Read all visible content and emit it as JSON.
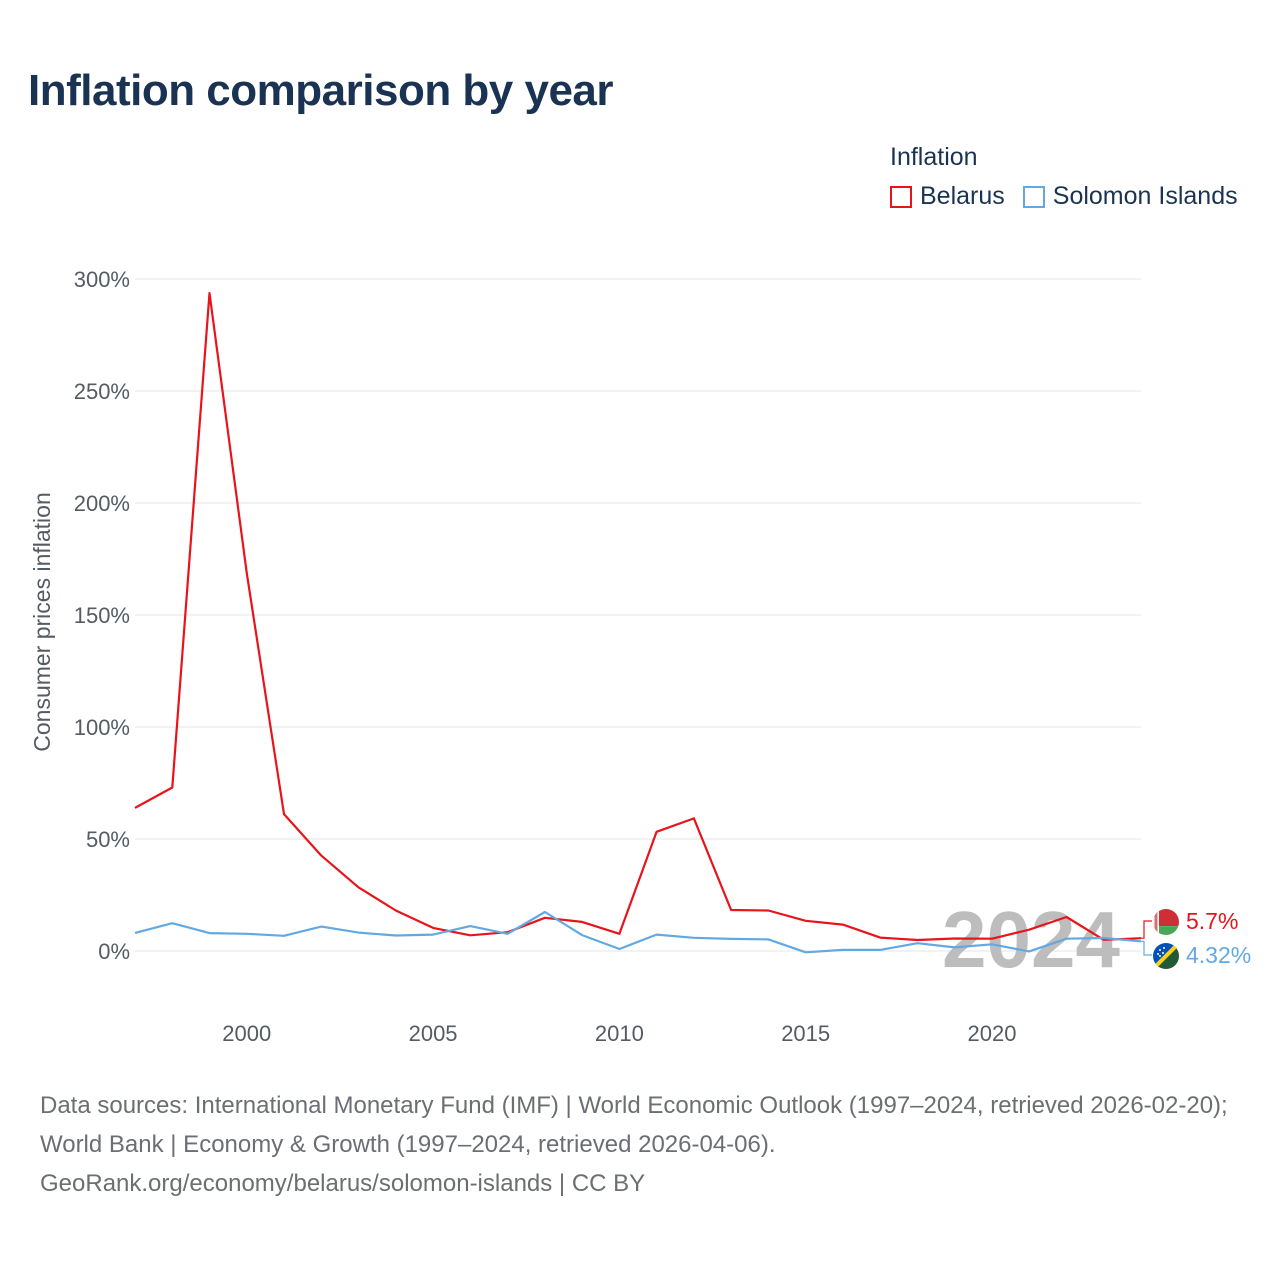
{
  "title": "Inflation comparison by year",
  "legend": {
    "title": "Inflation",
    "items": [
      {
        "label": "Belarus",
        "color": "#e8141b"
      },
      {
        "label": "Solomon Islands",
        "color": "#62a9e3"
      }
    ]
  },
  "watermark_year": "2024",
  "source": {
    "line1": "Data sources: International Monetary Fund (IMF) | World Economic Outlook (1997–2024, retrieved 2026-02-20); World Bank | Economy & Growth (1997–2024, retrieved 2026-04-06).",
    "line2": "GeoRank.org/economy/belarus/solomon-islands | CC BY"
  },
  "chart_data": {
    "type": "line",
    "title": "Inflation comparison by year",
    "xlabel": "",
    "ylabel": "Consumer prices inflation",
    "xlim": [
      1997,
      2024
    ],
    "ylim": [
      0,
      300
    ],
    "y_ticks": [
      0,
      50,
      100,
      150,
      200,
      250,
      300
    ],
    "y_tick_labels": [
      "0%",
      "50%",
      "100%",
      "150%",
      "200%",
      "250%",
      "300%"
    ],
    "x_ticks": [
      2000,
      2005,
      2010,
      2015,
      2020
    ],
    "x_tick_labels": [
      "2000",
      "2005",
      "2010",
      "2015",
      "2020"
    ],
    "grid": true,
    "legend_position": "top-right",
    "x": [
      1997,
      1998,
      1999,
      2000,
      2001,
      2002,
      2003,
      2004,
      2005,
      2006,
      2007,
      2008,
      2009,
      2010,
      2011,
      2012,
      2013,
      2014,
      2015,
      2016,
      2017,
      2018,
      2019,
      2020,
      2021,
      2022,
      2023,
      2024
    ],
    "series": [
      {
        "name": "Belarus",
        "color": "#e8141b",
        "values": [
          63.9,
          73.0,
          293.7,
          168.6,
          61.1,
          42.6,
          28.4,
          18.1,
          10.3,
          7.0,
          8.4,
          14.8,
          13.0,
          7.7,
          53.2,
          59.2,
          18.3,
          18.1,
          13.5,
          11.8,
          6.0,
          4.9,
          5.6,
          5.5,
          9.5,
          15.2,
          5.0,
          5.7
        ],
        "end_label": "5.7%",
        "flag": "belarus"
      },
      {
        "name": "Solomon Islands",
        "color": "#62a9e3",
        "values": [
          8.1,
          12.4,
          8.0,
          7.7,
          6.8,
          10.9,
          8.2,
          6.9,
          7.3,
          11.1,
          7.7,
          17.4,
          7.1,
          0.9,
          7.3,
          5.9,
          5.4,
          5.2,
          -0.6,
          0.5,
          0.5,
          3.5,
          1.6,
          3.0,
          -0.2,
          5.5,
          5.8,
          4.32
        ],
        "end_label": "4.32%",
        "flag": "solomon-islands"
      }
    ]
  }
}
